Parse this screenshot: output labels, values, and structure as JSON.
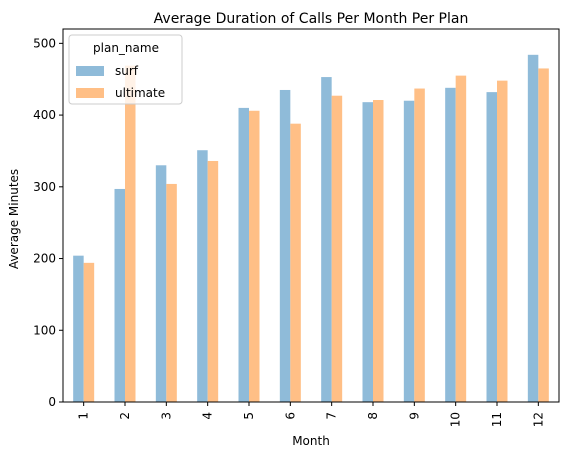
{
  "chart_data": {
    "type": "bar",
    "title": "Average Duration of Calls Per Month Per Plan",
    "xlabel": "Month",
    "ylabel": "Average Minutes",
    "categories": [
      "1",
      "2",
      "3",
      "4",
      "5",
      "6",
      "7",
      "8",
      "9",
      "10",
      "11",
      "12"
    ],
    "ylim": [
      0,
      520
    ],
    "yticks": [
      0,
      100,
      200,
      300,
      400,
      500
    ],
    "grid": false,
    "legend": {
      "title": "plan_name",
      "placement": "top-left"
    },
    "series": [
      {
        "name": "surf",
        "color": "#8fbbd9",
        "values": [
          204,
          297,
          330,
          351,
          410,
          435,
          453,
          418,
          420,
          438,
          432,
          484
        ]
      },
      {
        "name": "ultimate",
        "color": "#ffbf86",
        "values": [
          194,
          469,
          304,
          336,
          406,
          388,
          427,
          421,
          437,
          455,
          448,
          465
        ]
      }
    ]
  }
}
